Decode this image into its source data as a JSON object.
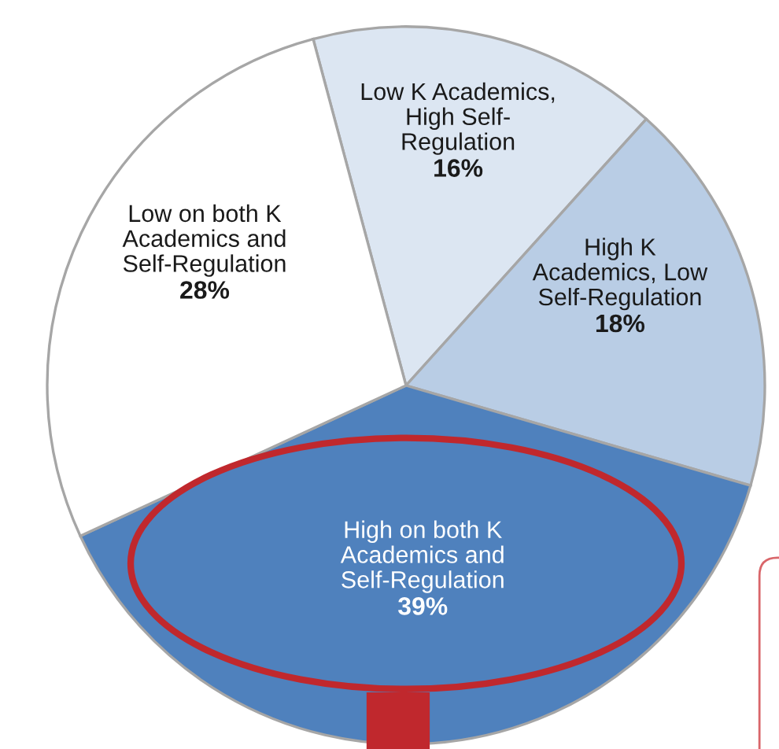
{
  "chart_data": {
    "type": "pie",
    "categories": [
      "Low K Academics,\nHigh Self-\nRegulation",
      "High K\nAcademics, Low\nSelf-Regulation",
      "High on both K\nAcademics and\nSelf-Regulation",
      "Low on both K\nAcademics and\nSelf-Regulation"
    ],
    "values": [
      16,
      18,
      39,
      28
    ],
    "value_labels": [
      "16%",
      "18%",
      "39%",
      "28%"
    ],
    "colors": [
      "#dce6f2",
      "#b9cde5",
      "#4f81bd",
      "#ffffff"
    ],
    "legend": false
  }
}
